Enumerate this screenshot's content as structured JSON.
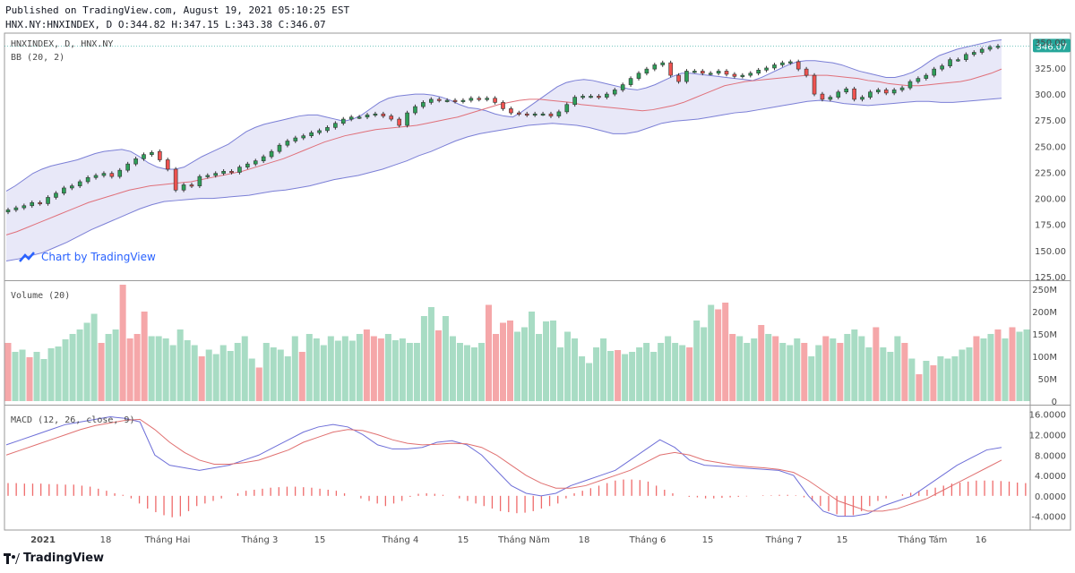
{
  "header": {
    "published": "Published on TradingView.com, August 19, 2021 05:10:25 EST",
    "ohlc": "HNX.NY:HNXINDEX, D O:344.82 H:347.15 L:343.38 C:346.07"
  },
  "watermark": "Chart by TradingView",
  "footer_brand": "TradingView",
  "colors": {
    "up": "#26a69a",
    "upFill": "#2e9e58",
    "down": "#ef5350",
    "band": "#7b7fd6",
    "bandFill": "#e8e8f8",
    "mid": "#e0707a",
    "volUp": "#a8dcc4",
    "volDown": "#f5a7a9",
    "macd": "#6e6fd8",
    "signal": "#e07070",
    "hist": "#ef6b6b"
  },
  "chart_data": [
    {
      "type": "candlestick",
      "title": "HNXINDEX, D, HNX.NY",
      "indicator": "BB (20, 2)",
      "last_value": "346.07",
      "y_ticks": [
        "350.00",
        "325.00",
        "300.00",
        "275.00",
        "250.00",
        "225.00",
        "200.00",
        "175.00",
        "150.00",
        "125.00"
      ],
      "ylim": [
        125,
        355
      ],
      "close": [
        189,
        191,
        193,
        196,
        195,
        201,
        205,
        210,
        212,
        216,
        220,
        222,
        224,
        221,
        227,
        233,
        238,
        242,
        244,
        237,
        228,
        208,
        213,
        212,
        221,
        222,
        224,
        226,
        225,
        230,
        233,
        236,
        240,
        245,
        251,
        255,
        258,
        260,
        263,
        265,
        268,
        272,
        276,
        278,
        278,
        280,
        281,
        279,
        276,
        270,
        282,
        288,
        292,
        295,
        294,
        294,
        293,
        294,
        296,
        295,
        296,
        292,
        286,
        282,
        281,
        280,
        281,
        281,
        279,
        283,
        290,
        297,
        298,
        298,
        297,
        300,
        304,
        309,
        315,
        320,
        324,
        328,
        330,
        318,
        312,
        322,
        322,
        320,
        320,
        322,
        319,
        317,
        318,
        320,
        323,
        325,
        328,
        330,
        331,
        324,
        318,
        300,
        295,
        297,
        302,
        305,
        295,
        297,
        302,
        304,
        301,
        304,
        306,
        312,
        315,
        318,
        324,
        327,
        333,
        333,
        338,
        340,
        343,
        345,
        346
      ],
      "open": [
        187,
        189,
        191,
        193,
        196,
        195,
        201,
        205,
        210,
        212,
        216,
        220,
        222,
        224,
        221,
        227,
        233,
        238,
        242,
        245,
        237,
        228,
        208,
        213,
        212,
        221,
        222,
        224,
        226,
        225,
        230,
        233,
        236,
        240,
        245,
        251,
        255,
        258,
        260,
        263,
        265,
        268,
        272,
        276,
        278,
        278,
        280,
        281,
        279,
        276,
        270,
        282,
        288,
        292,
        295,
        294,
        294,
        293,
        294,
        296,
        295,
        296,
        292,
        286,
        282,
        281,
        280,
        281,
        281,
        279,
        283,
        290,
        297,
        298,
        298,
        297,
        300,
        304,
        309,
        315,
        320,
        324,
        328,
        330,
        318,
        312,
        322,
        322,
        320,
        320,
        322,
        319,
        317,
        318,
        320,
        323,
        325,
        328,
        330,
        331,
        324,
        318,
        300,
        295,
        297,
        302,
        305,
        295,
        297,
        302,
        304,
        301,
        304,
        306,
        312,
        315,
        318,
        324,
        327,
        333,
        333,
        338,
        340,
        343,
        345
      ],
      "bb_upper": [
        207,
        212,
        218,
        224,
        228,
        231,
        233,
        235,
        237,
        240,
        243,
        245,
        246,
        247,
        245,
        240,
        234,
        230,
        228,
        228,
        230,
        235,
        240,
        244,
        248,
        252,
        258,
        264,
        268,
        271,
        273,
        275,
        277,
        279,
        280,
        280,
        278,
        276,
        274,
        276,
        280,
        286,
        292,
        296,
        298,
        299,
        300,
        300,
        299,
        297,
        294,
        290,
        287,
        286,
        284,
        281,
        279,
        278,
        283,
        289,
        295,
        301,
        307,
        311,
        313,
        314,
        313,
        311,
        309,
        307,
        305,
        304,
        306,
        309,
        313,
        317,
        320,
        320,
        319,
        318,
        317,
        316,
        315,
        314,
        313,
        316,
        320,
        324,
        328,
        331,
        332,
        332,
        331,
        330,
        328,
        325,
        322,
        320,
        318,
        316,
        316,
        318,
        321,
        326,
        332,
        337,
        340,
        343,
        345,
        347,
        349,
        351,
        352
      ],
      "bb_lower": [
        140,
        142,
        145,
        148,
        153,
        158,
        164,
        170,
        175,
        180,
        185,
        190,
        194,
        197,
        198,
        199,
        200,
        200,
        201,
        202,
        203,
        205,
        207,
        208,
        210,
        212,
        215,
        218,
        220,
        222,
        225,
        228,
        232,
        236,
        241,
        245,
        250,
        255,
        259,
        262,
        264,
        266,
        268,
        270,
        271,
        272,
        271,
        270,
        268,
        265,
        262,
        262,
        264,
        268,
        272,
        274,
        275,
        276,
        278,
        280,
        282,
        283,
        285,
        287,
        289,
        291,
        293,
        294,
        293,
        291,
        290,
        289,
        290,
        291,
        292,
        293,
        293,
        292,
        292,
        293,
        294,
        295,
        296
      ],
      "bb_mid": [
        165,
        168,
        172,
        176,
        180,
        184,
        188,
        192,
        196,
        199,
        202,
        205,
        208,
        210,
        212,
        213,
        214,
        215,
        216,
        218,
        220,
        222,
        224,
        226,
        229,
        232,
        235,
        238,
        242,
        246,
        250,
        254,
        257,
        260,
        262,
        264,
        266,
        267,
        268,
        269,
        270,
        272,
        274,
        276,
        278,
        281,
        284,
        287,
        290,
        292,
        294,
        295,
        295,
        294,
        293,
        292,
        290,
        289,
        288,
        287,
        286,
        285,
        284,
        285,
        287,
        289,
        292,
        296,
        300,
        304,
        308,
        310,
        312,
        313,
        314,
        315,
        316,
        317,
        318,
        318,
        318,
        317,
        316,
        315,
        313,
        312,
        310,
        309,
        308,
        308,
        309,
        310,
        311,
        312,
        314,
        317,
        320,
        324
      ]
    },
    {
      "type": "bar",
      "title": "Volume (20)",
      "y_ticks": [
        "250M",
        "200M",
        "150M",
        "100M",
        "50M",
        "0"
      ],
      "ylim": [
        0,
        260
      ],
      "values": [
        130,
        110,
        115,
        98,
        110,
        94,
        118,
        122,
        138,
        150,
        160,
        175,
        195,
        130,
        150,
        160,
        260,
        140,
        150,
        200,
        145,
        145,
        140,
        125,
        160,
        136,
        125,
        100,
        115,
        105,
        125,
        112,
        130,
        145,
        95,
        75,
        130,
        120,
        115,
        100,
        145,
        110,
        150,
        140,
        125,
        145,
        135,
        145,
        135,
        150,
        160,
        145,
        140,
        150,
        136,
        140,
        130,
        130,
        190,
        210,
        158,
        190,
        145,
        130,
        125,
        120,
        130,
        215,
        150,
        175,
        180,
        155,
        165,
        200,
        150,
        178,
        180,
        120,
        155,
        140,
        100,
        85,
        120,
        140,
        112,
        114,
        105,
        110,
        120,
        130,
        110,
        130,
        145,
        130,
        125,
        120,
        180,
        165,
        215,
        205,
        220,
        150,
        145,
        130,
        140,
        170,
        150,
        145,
        130,
        125,
        140,
        130,
        100,
        125,
        145,
        140,
        130,
        150,
        160,
        145,
        120,
        165,
        120,
        110,
        145,
        130,
        95,
        60,
        90,
        80,
        100,
        95,
        100,
        115,
        120,
        145,
        140,
        150,
        160,
        140,
        165,
        155,
        160
      ],
      "up": [
        0,
        1,
        1,
        0,
        1,
        1,
        1,
        1,
        1,
        1,
        1,
        1,
        1,
        0,
        1,
        1,
        0,
        0,
        0,
        0,
        1,
        1,
        1,
        1,
        1,
        1,
        1,
        0,
        1,
        1,
        1,
        1,
        1,
        1,
        1,
        0,
        1,
        1,
        1,
        1,
        1,
        0,
        1,
        1,
        1,
        1,
        1,
        1,
        1,
        1,
        0,
        0,
        0,
        1,
        1,
        1,
        1,
        1,
        1,
        1,
        0,
        1,
        1,
        1,
        1,
        1,
        1,
        0,
        0,
        0,
        0,
        1,
        1,
        1,
        1,
        1,
        1,
        1,
        1,
        1,
        1,
        1,
        1,
        1,
        1,
        0,
        1,
        1,
        1,
        1,
        1,
        1,
        1,
        1,
        1,
        0,
        1,
        1,
        1,
        0,
        0,
        0,
        1,
        1,
        1,
        0,
        1,
        0,
        1,
        1,
        1,
        0,
        1,
        1,
        0,
        1,
        0,
        1,
        1,
        1,
        1,
        0,
        1,
        1,
        1,
        0,
        1,
        0,
        1,
        0,
        1,
        1,
        1,
        1,
        1,
        0,
        1,
        1,
        0,
        1,
        0,
        1,
        1
      ]
    },
    {
      "type": "line",
      "title": "MACD (12, 26, close, 9)",
      "y_ticks": [
        "16.0000",
        "12.0000",
        "8.0000",
        "4.0000",
        "0.0000",
        "-4.0000"
      ],
      "ylim": [
        -6,
        17
      ],
      "macd": [
        10,
        11,
        12,
        13,
        14,
        14.5,
        15,
        15.5,
        15.2,
        14.5,
        8,
        6,
        5.5,
        5,
        5.5,
        6,
        7,
        8,
        9.5,
        11,
        12.5,
        13.5,
        14,
        13.5,
        12,
        10,
        9.2,
        9.2,
        9.5,
        10.5,
        10.8,
        10,
        8,
        5,
        2,
        0.5,
        0,
        0.5,
        2,
        3,
        4,
        5,
        7,
        9,
        11,
        9.5,
        7,
        6,
        5.8,
        5.6,
        5.4,
        5.2,
        5,
        4,
        0,
        -3,
        -4,
        -4,
        -3.5,
        -2,
        -1,
        0,
        2,
        4,
        6,
        7.5,
        9,
        9.5
      ],
      "signal": [
        8,
        9,
        10,
        11,
        12,
        13,
        13.8,
        14.3,
        14.8,
        15,
        13,
        10.5,
        8.5,
        7,
        6.2,
        6.2,
        6.5,
        7,
        8,
        9,
        10.5,
        11.5,
        12.5,
        13,
        12.8,
        12,
        11,
        10.3,
        10,
        10.1,
        10.3,
        10.2,
        9.5,
        8,
        6,
        4,
        2.5,
        1.5,
        1.5,
        2,
        3,
        4,
        5,
        6.5,
        8,
        8.5,
        8,
        7,
        6.5,
        6,
        5.7,
        5.5,
        5.2,
        4.6,
        3,
        1,
        -1,
        -2,
        -3,
        -3,
        -2.5,
        -1.5,
        -0.5,
        1,
        2.5,
        4,
        5.5,
        7
      ],
      "histogram": [
        2.5,
        2.5,
        2.4,
        2.4,
        2.4,
        2.3,
        2.3,
        2.2,
        2.2,
        2,
        1.8,
        1.4,
        1,
        0.5,
        0.2,
        -0.5,
        -1.5,
        -2.5,
        -3.2,
        -3.8,
        -4.2,
        -4,
        -3,
        -2,
        -1.5,
        -1,
        -0.5,
        0,
        0.5,
        1,
        1.2,
        1.4,
        1.6,
        1.7,
        1.8,
        1.8,
        1.7,
        1.6,
        1.4,
        1.2,
        1,
        0.5,
        0,
        -0.5,
        -1,
        -1.5,
        -2,
        -1.5,
        -1,
        -0.2,
        0.4,
        0.5,
        0.4,
        0.2,
        0,
        -0.5,
        -1,
        -1.5,
        -2,
        -2.5,
        -3,
        -3.2,
        -3.4,
        -3.3,
        -3,
        -2.5,
        -2,
        -1.5,
        -0.5,
        0.5,
        1,
        1.5,
        2,
        2.5,
        3,
        3.2,
        3.2,
        3.1,
        2.8,
        2,
        1.2,
        0.5,
        0,
        -0.2,
        -0.3,
        -0.5,
        -0.5,
        -0.4,
        -0.3,
        -0.2,
        -0.1,
        0,
        0.1,
        0.1,
        0.2,
        0.2,
        0.1,
        -0.3,
        -1,
        -2,
        -3,
        -3.6,
        -4,
        -3.8,
        -3,
        -2,
        -1,
        -0.5,
        0,
        0.3,
        0.6,
        0.9,
        1.2,
        1.6,
        2,
        2.4,
        2.6,
        2.8,
        3,
        3,
        3,
        2.9,
        2.8,
        2.6,
        2.5
      ]
    }
  ],
  "x_ticks": [
    "2021",
    "18",
    "Tháng Hai",
    "Tháng 3",
    "15",
    "Tháng 4",
    "15",
    "Tháng Năm",
    "18",
    "Tháng 6",
    "15",
    "Tháng 7",
    "15",
    "Tháng Tám",
    "16"
  ]
}
